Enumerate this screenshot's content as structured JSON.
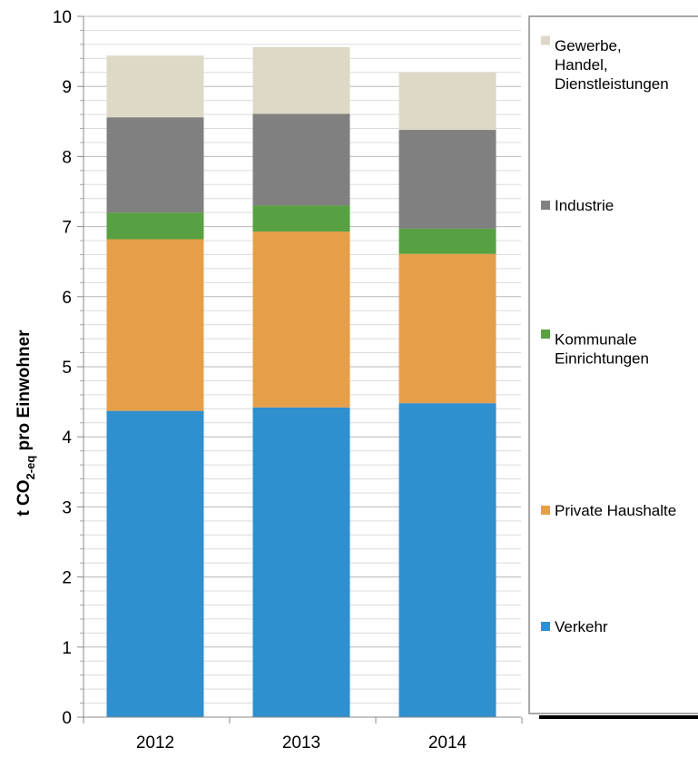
{
  "chart_data": {
    "type": "bar",
    "stacked": true,
    "categories": [
      "2012",
      "2013",
      "2014"
    ],
    "series": [
      {
        "name": "Verkehr",
        "values": [
          4.37,
          4.42,
          4.48
        ],
        "color": "#2f8fcf"
      },
      {
        "name": "Private Haushalte",
        "values": [
          2.45,
          2.51,
          2.13
        ],
        "color": "#e69f49"
      },
      {
        "name": "Kommunale Einrichtungen",
        "values": [
          0.38,
          0.37,
          0.36
        ],
        "color": "#57a143"
      },
      {
        "name": "Industrie",
        "values": [
          1.36,
          1.31,
          1.41
        ],
        "color": "#808080"
      },
      {
        "name": "Gewerbe, Handel, Dienstleistungen",
        "values": [
          0.88,
          0.95,
          0.82
        ],
        "color": "#ddd9c6"
      }
    ],
    "ylim": [
      0,
      10
    ],
    "yticks": [
      "0",
      "1",
      "2",
      "3",
      "4",
      "5",
      "6",
      "7",
      "8",
      "9",
      "10"
    ],
    "ylabel": {
      "prefix": "t CO",
      "subscript": "2-eq",
      "suffix": " pro Einwohner"
    },
    "xlabel": "",
    "grid": true,
    "legend_position": "right",
    "legend": [
      {
        "series": 4,
        "lines": [
          "Gewerbe,",
          "Handel,",
          "Dienstleistungen"
        ]
      },
      {
        "series": 3,
        "lines": [
          "Industrie"
        ]
      },
      {
        "series": 2,
        "lines": [
          "Kommunale",
          "Einrichtungen"
        ]
      },
      {
        "series": 1,
        "lines": [
          "Private Haushalte"
        ]
      },
      {
        "series": 0,
        "lines": [
          "Verkehr"
        ]
      }
    ]
  }
}
